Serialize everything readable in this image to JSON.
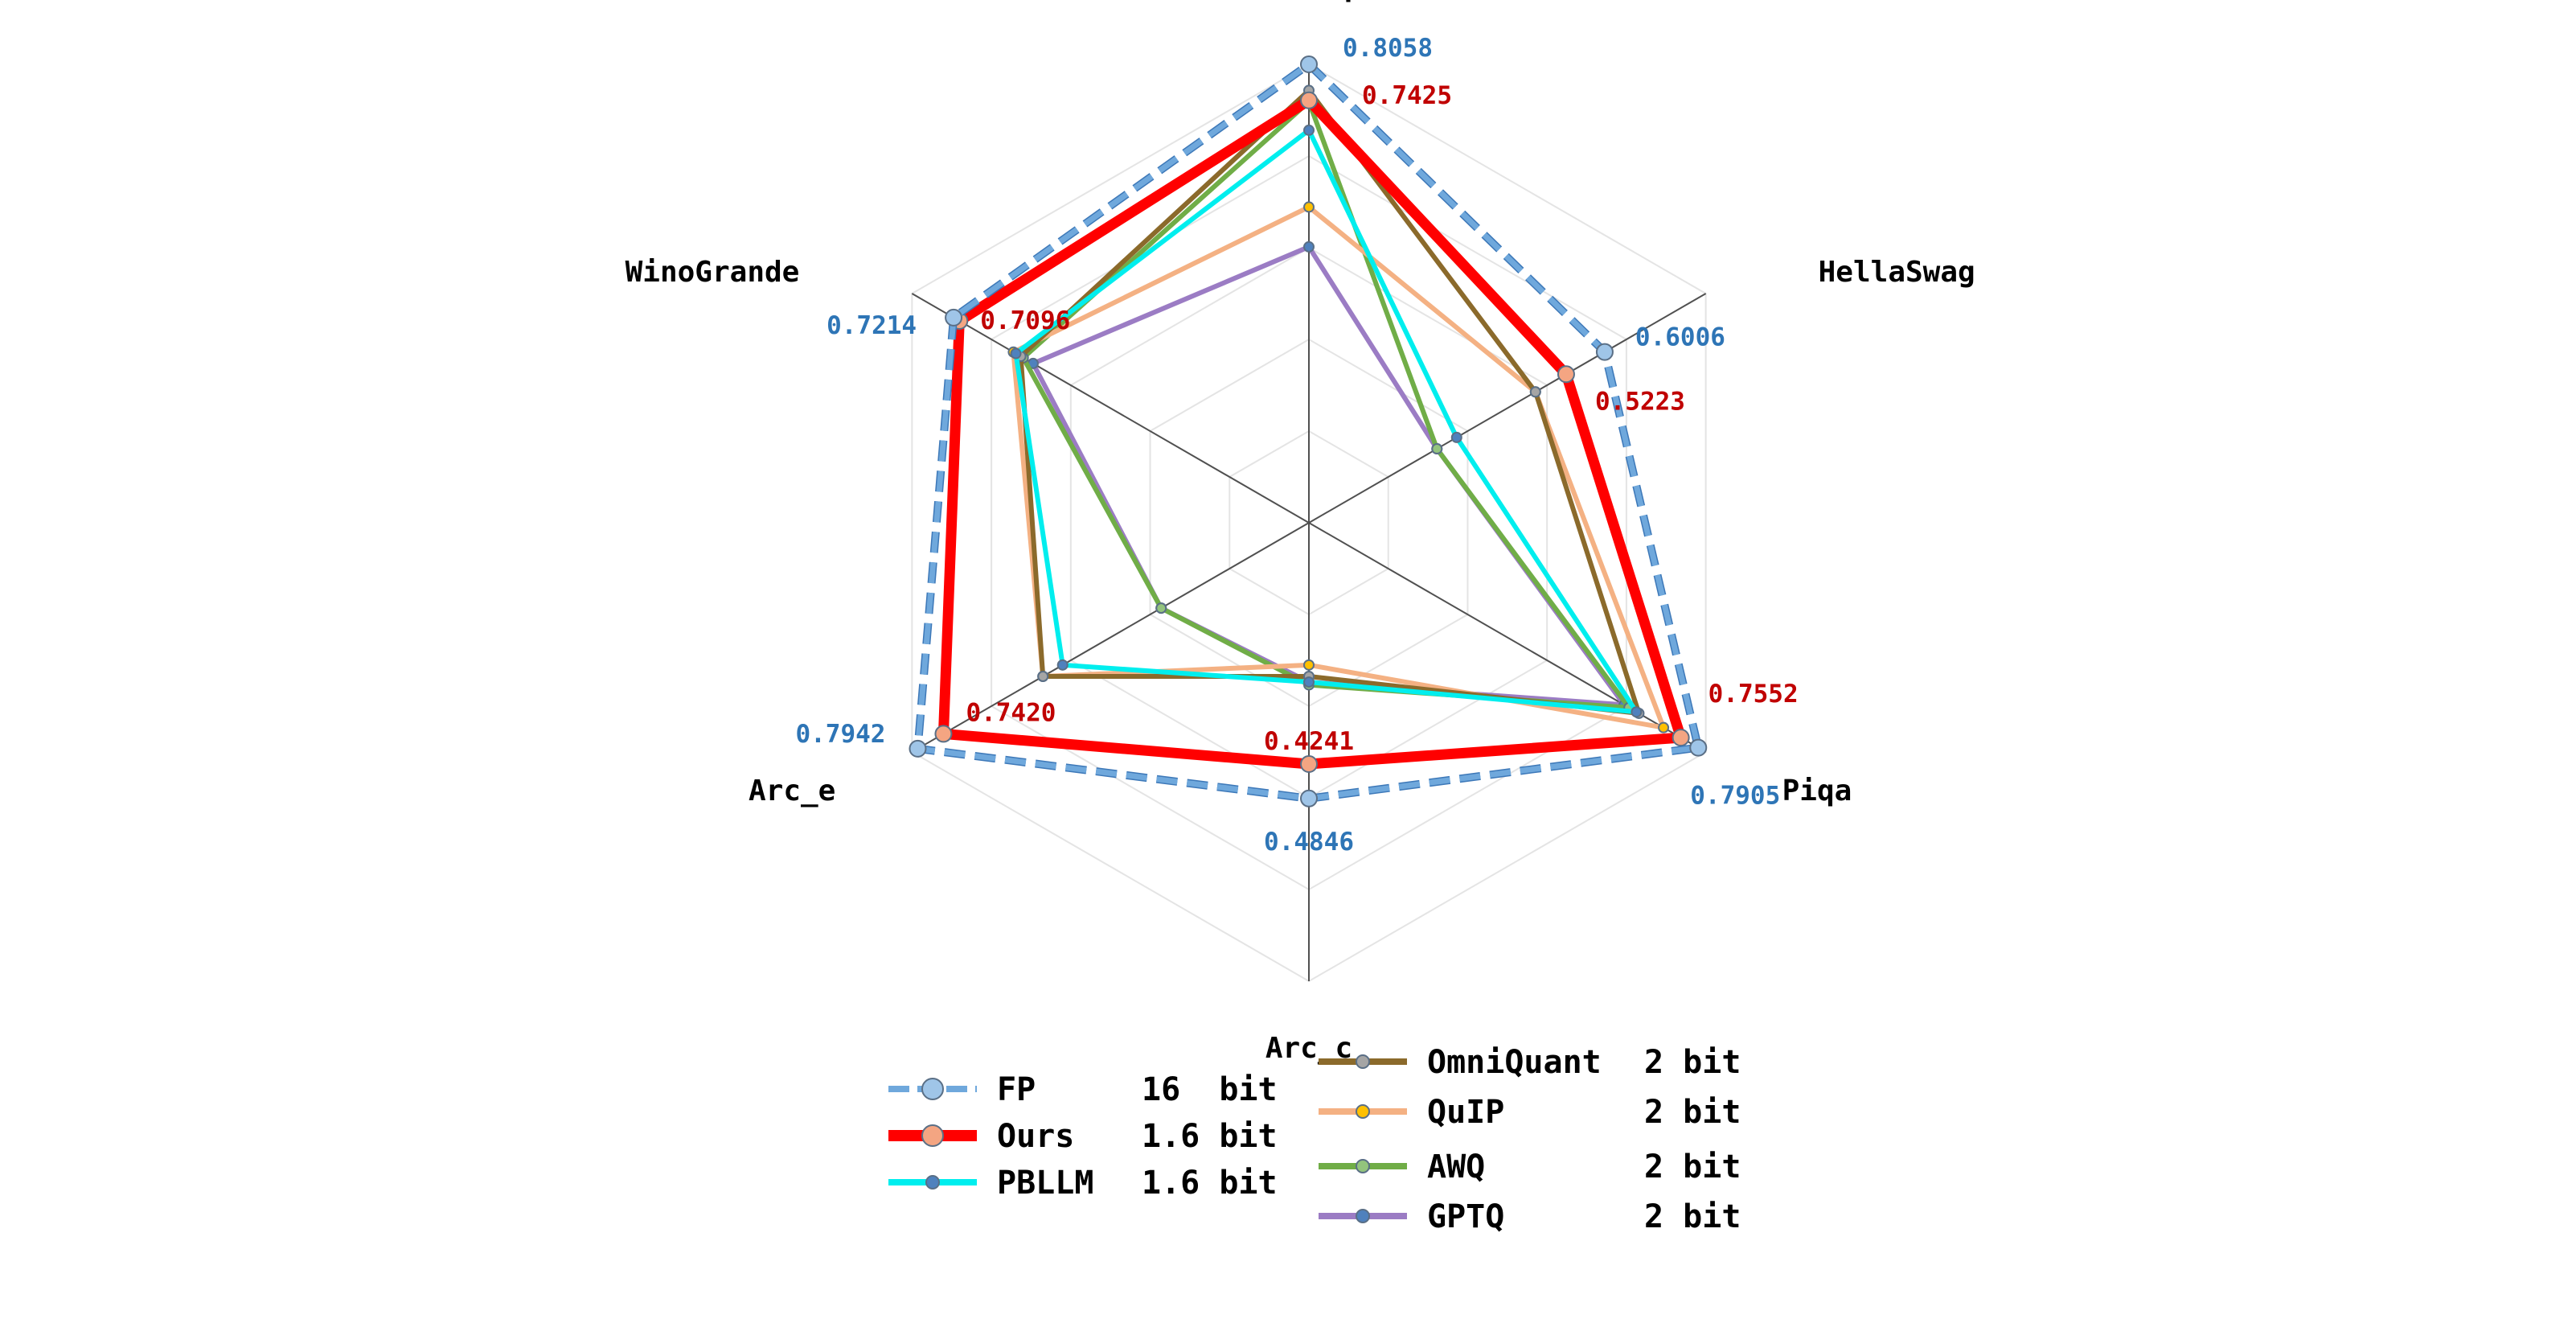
{
  "chart_data": {
    "type": "radar",
    "axes": [
      "Boolq",
      "HellaSwag",
      "Piqa",
      "Arc_c",
      "Arc_e",
      "WinoGrande"
    ],
    "range": [
      0,
      0.8058
    ],
    "grid_levels": 5,
    "series": [
      {
        "name": "GPTQ",
        "bits": "2 bit",
        "color": "#9b7cc4",
        "marker": "#4f81bd",
        "width": 6,
        "values": [
          0.485,
          0.26,
          0.64,
          0.28,
          0.3,
          0.56
        ]
      },
      {
        "name": "AWQ",
        "bits": "2 bit",
        "color": "#70ad47",
        "marker": "#93c47d",
        "width": 6,
        "values": [
          0.74,
          0.26,
          0.65,
          0.285,
          0.3,
          0.58
        ]
      },
      {
        "name": "QuIP",
        "bits": "2 bit",
        "color": "#f4b183",
        "marker": "#ffc000",
        "width": 6,
        "values": [
          0.555,
          0.46,
          0.72,
          0.25,
          0.54,
          0.6
        ]
      },
      {
        "name": "OmniQuant",
        "bits": "2 bit",
        "color": "#8b6a2b",
        "marker": "#a5a5a5",
        "width": 6,
        "values": [
          0.76,
          0.46,
          0.67,
          0.27,
          0.54,
          0.585
        ]
      },
      {
        "name": "PBLLM",
        "bits": "1.6 bit",
        "color": "#00eeee",
        "marker": "#4f81bd",
        "width": 6,
        "values": [
          0.69,
          0.3,
          0.665,
          0.28,
          0.5,
          0.595
        ]
      },
      {
        "name": "Ours",
        "bits": "1.6 bit",
        "color": "#ff0000",
        "marker": "#f4a582",
        "width": 13,
        "values": [
          0.7425,
          0.5223,
          0.7552,
          0.4241,
          0.742,
          0.7096
        ]
      },
      {
        "name": "FP",
        "bits": "16  bit",
        "color": "#6fa8dc",
        "marker": "#9fc5e8",
        "width": 7,
        "dashed": true,
        "values": [
          0.8058,
          0.6006,
          0.7905,
          0.4846,
          0.7942,
          0.7214
        ]
      }
    ],
    "value_labels": {
      "FP": [
        "0.8058",
        "0.6006",
        "0.7905",
        "0.4846",
        "0.7942",
        "0.7214"
      ],
      "Ours": [
        "0.7425",
        "0.5223",
        "0.7552",
        "0.4241",
        "0.7420",
        "0.7096"
      ]
    },
    "label_colors": {
      "FP": "#2e75b6",
      "Ours": "#c00000"
    },
    "legend": {
      "left": [
        "FP",
        "Ours",
        "PBLLM"
      ],
      "right": [
        "OmniQuant",
        "QuIP",
        "AWQ",
        "GPTQ"
      ]
    }
  }
}
